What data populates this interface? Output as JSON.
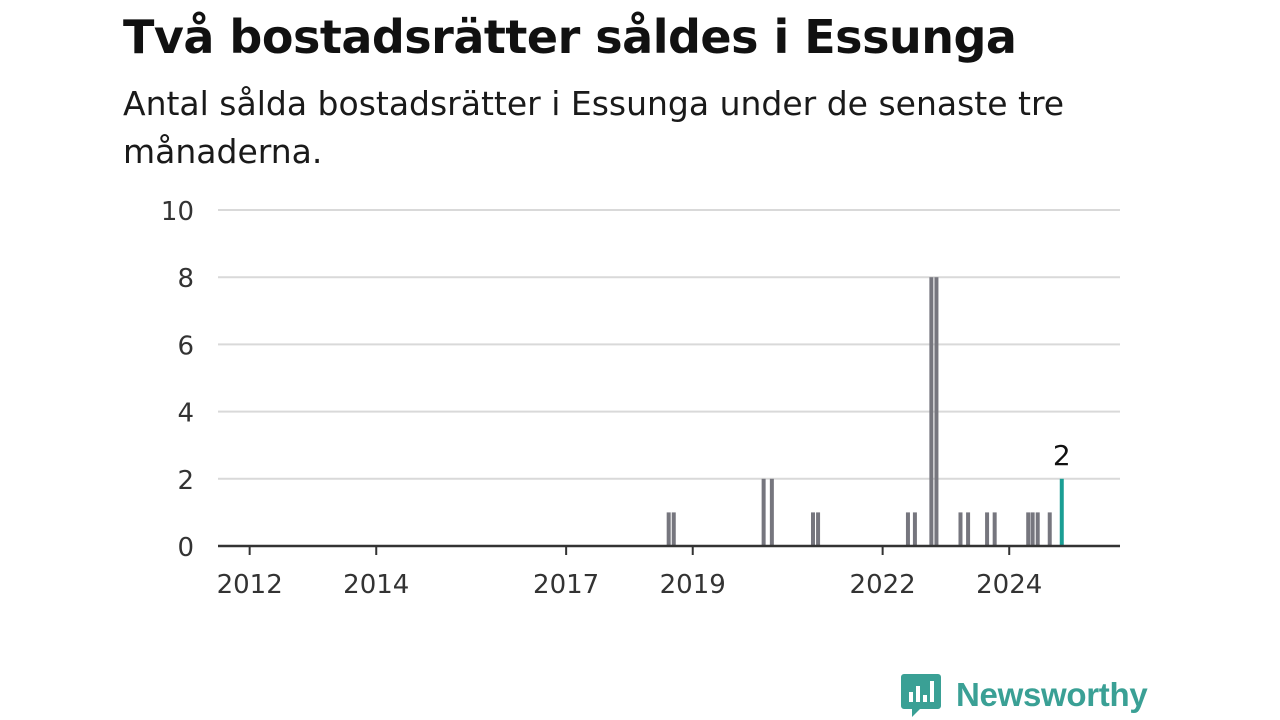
{
  "title": "Två bostadsrätter såldes i Essunga",
  "subtitle": "Antal sålda bostadsrätter i Essunga under de senaste tre månaderna.",
  "brand": {
    "name": "Newsworthy",
    "color": "#3aa095",
    "icon": "newsworthy-chart-icon"
  },
  "colors": {
    "bar": "#76767e",
    "highlight": "#1a9e94",
    "grid": "#d9d9d9",
    "axis": "#333333"
  },
  "chart_data": {
    "type": "bar",
    "title": "Två bostadsrätter såldes i Essunga",
    "subtitle": "Antal sålda bostadsrätter i Essunga under de senaste tre månaderna.",
    "xlabel": "",
    "ylabel": "",
    "ylim": [
      0,
      10
    ],
    "yticks": [
      0,
      2,
      4,
      6,
      8,
      10
    ],
    "xlim": [
      2011.5,
      2025.75
    ],
    "xticks": [
      {
        "label": "2012",
        "value": 2012
      },
      {
        "label": "2014",
        "value": 2014
      },
      {
        "label": "2017",
        "value": 2017
      },
      {
        "label": "2019",
        "value": 2019
      },
      {
        "label": "2022",
        "value": 2022
      },
      {
        "label": "2024",
        "value": 2024
      }
    ],
    "grid": true,
    "series": [
      {
        "points": [
          {
            "x": 2018.62,
            "y": 1
          },
          {
            "x": 2018.7,
            "y": 1
          },
          {
            "x": 2020.12,
            "y": 2
          },
          {
            "x": 2020.25,
            "y": 2
          },
          {
            "x": 2020.9,
            "y": 1
          },
          {
            "x": 2020.98,
            "y": 1
          },
          {
            "x": 2022.4,
            "y": 1
          },
          {
            "x": 2022.51,
            "y": 1
          },
          {
            "x": 2022.77,
            "y": 8
          },
          {
            "x": 2022.85,
            "y": 8
          },
          {
            "x": 2023.23,
            "y": 1
          },
          {
            "x": 2023.35,
            "y": 1
          },
          {
            "x": 2023.65,
            "y": 1
          },
          {
            "x": 2023.77,
            "y": 1
          },
          {
            "x": 2024.3,
            "y": 1
          },
          {
            "x": 2024.37,
            "y": 1
          },
          {
            "x": 2024.45,
            "y": 1
          },
          {
            "x": 2024.64,
            "y": 1
          }
        ]
      }
    ],
    "highlight": {
      "x": 2024.83,
      "y": 2,
      "label": "2"
    }
  }
}
